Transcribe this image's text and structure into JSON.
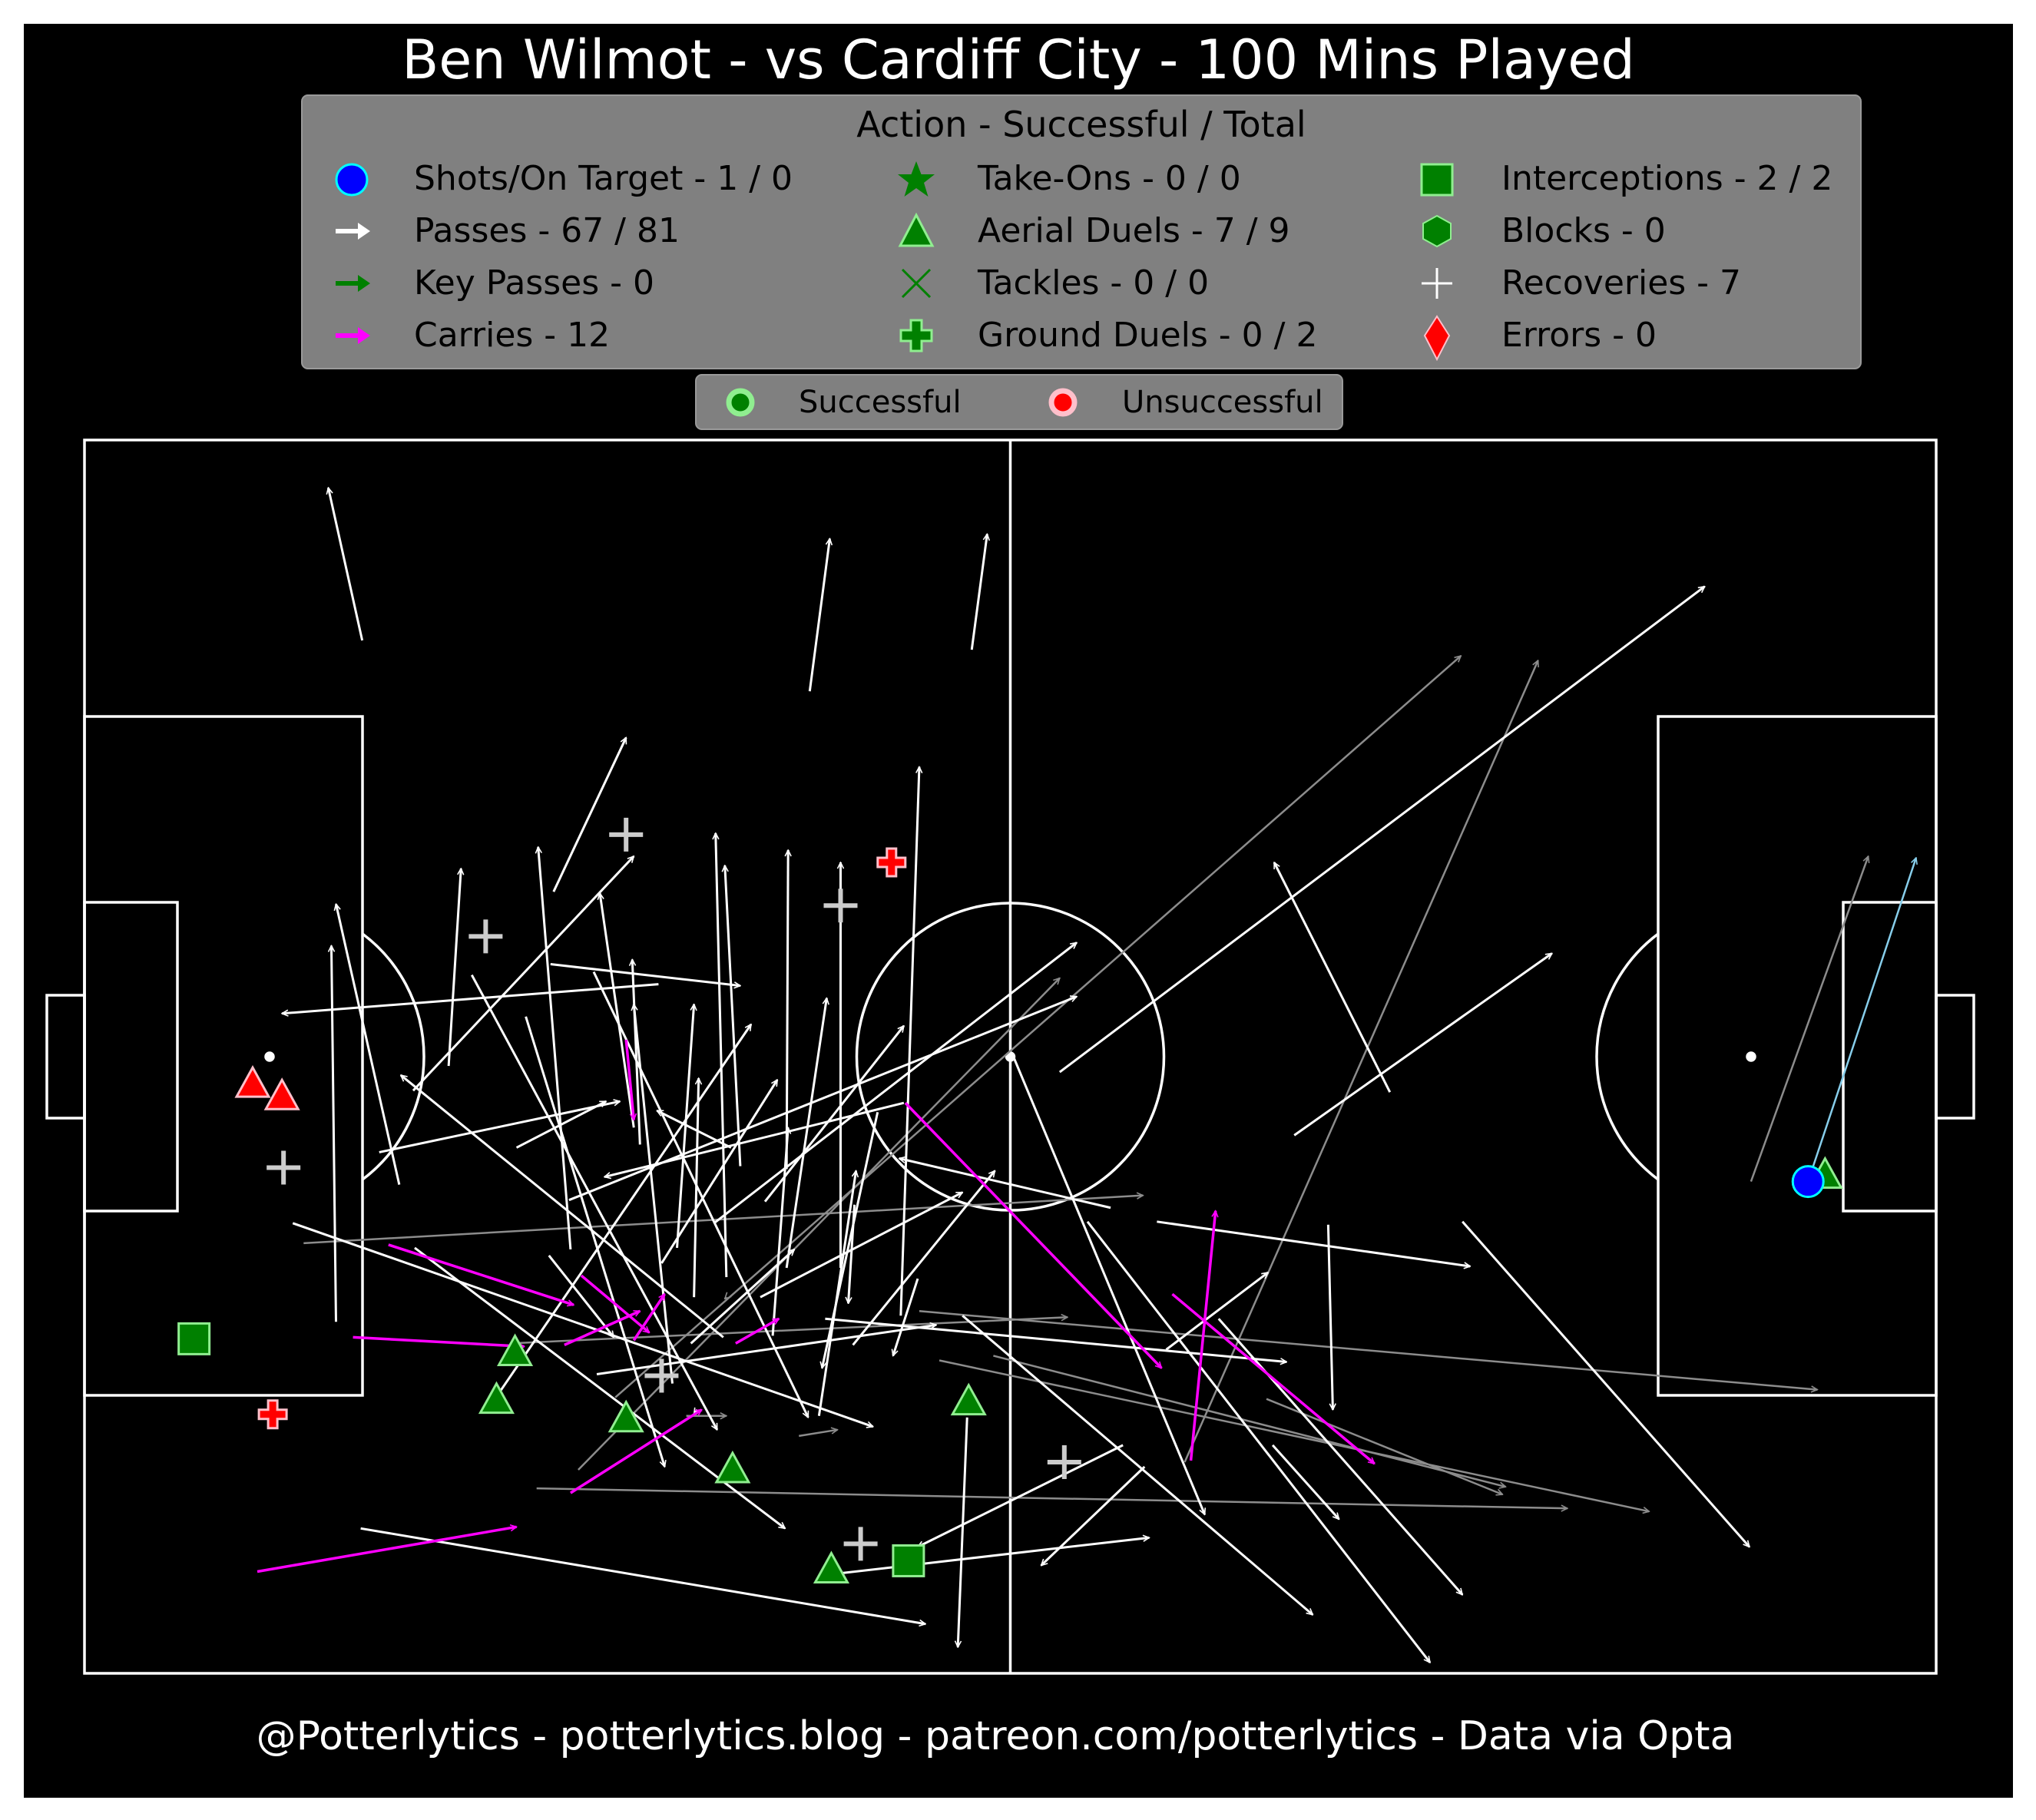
{
  "title": "Ben Wilmot - vs Cardiff City - 100 Mins Played",
  "footer": "@Potterlytics - potterlytics.blog - patreon.com/potterlytics - Data via Opta",
  "colors": {
    "background": "#000000",
    "frame": "#ffffff",
    "legend_bg": "#808080",
    "pass": "#ffffff",
    "pass_unsuccessful": "#8c8c8c",
    "key_pass": "#008000",
    "carry": "#ff00ff",
    "shot": "#0000ff",
    "shot_pass": "#87ceeb",
    "success_fill": "#008000",
    "success_edge": "#90ee90",
    "fail_fill": "#ff0000"
  },
  "legend": {
    "title": "Action - Successful / Total",
    "items": [
      {
        "icon": "shot-circle-icon",
        "label": "Shots/On Target - 1 / 0"
      },
      {
        "icon": "pass-arrow-icon",
        "label": "Passes - 67 / 81"
      },
      {
        "icon": "key-pass-arrow-icon",
        "label": "Key Passes - 0"
      },
      {
        "icon": "carry-arrow-icon",
        "label": "Carries - 12"
      },
      {
        "icon": "star-icon",
        "label": "Take-Ons - 0 / 0"
      },
      {
        "icon": "triangle-icon",
        "label": "Aerial Duels - 7 / 9"
      },
      {
        "icon": "x-icon",
        "label": "Tackles - 0 / 0"
      },
      {
        "icon": "bold-plus-icon",
        "label": "Ground Duels - 0 / 2"
      },
      {
        "icon": "square-icon",
        "label": "Interceptions - 2 / 2"
      },
      {
        "icon": "hexagon-icon",
        "label": "Blocks - 0"
      },
      {
        "icon": "plus-icon",
        "label": "Recoveries - 7"
      },
      {
        "icon": "diamond-icon",
        "label": "Errors - 0"
      }
    ]
  },
  "legend2": {
    "successful": "Successful",
    "unsuccessful": "Unsuccessful"
  },
  "chart_data": {
    "type": "scatter",
    "pitch": {
      "length": 120,
      "width": 80,
      "direction": "left-to-right"
    },
    "passes": [
      {
        "x": 18,
        "y": 13,
        "x2": 15.8,
        "y2": 3.1,
        "ok": true
      },
      {
        "x": 47,
        "y": 16.3,
        "x2": 48.3,
        "y2": 6.4,
        "ok": true
      },
      {
        "x": 57.5,
        "y": 13.6,
        "x2": 58.5,
        "y2": 6.1,
        "ok": true
      },
      {
        "x": 52.9,
        "y": 56.8,
        "x2": 54.1,
        "y2": 21.2,
        "ok": true
      },
      {
        "x": 30.4,
        "y": 29.3,
        "x2": 35.1,
        "y2": 19.3,
        "ok": true
      },
      {
        "x": 37.2,
        "y": 35.3,
        "x2": 12.8,
        "y2": 37.2,
        "ok": true
      },
      {
        "x": 16.3,
        "y": 57.2,
        "x2": 16.0,
        "y2": 32.8,
        "ok": true
      },
      {
        "x": 20.4,
        "y": 48.3,
        "x2": 16.3,
        "y2": 30.1,
        "ok": true
      },
      {
        "x": 35.6,
        "y": 44.6,
        "x2": 33.4,
        "y2": 29.4,
        "ok": true
      },
      {
        "x": 31.5,
        "y": 52.5,
        "x2": 29.4,
        "y2": 26.4,
        "ok": true
      },
      {
        "x": 41.6,
        "y": 54.3,
        "x2": 40.9,
        "y2": 25.5,
        "ok": true
      },
      {
        "x": 42.5,
        "y": 47.1,
        "x2": 41.5,
        "y2": 27.6,
        "ok": true
      },
      {
        "x": 45.5,
        "y": 47.3,
        "x2": 45.6,
        "y2": 26.6,
        "ok": true
      },
      {
        "x": 49.0,
        "y": 53.7,
        "x2": 49.0,
        "y2": 27.4,
        "ok": true
      },
      {
        "x": 45.5,
        "y": 53.7,
        "x2": 48.1,
        "y2": 36.2,
        "ok": true
      },
      {
        "x": 21.3,
        "y": 42.2,
        "x2": 35.6,
        "y2": 27.0,
        "ok": true
      },
      {
        "x": 30.2,
        "y": 34.0,
        "x2": 42.5,
        "y2": 35.4,
        "ok": true
      },
      {
        "x": 19.1,
        "y": 46.2,
        "x2": 34.7,
        "y2": 42.9,
        "ok": true
      },
      {
        "x": 41.9,
        "y": 45.9,
        "x2": 37.1,
        "y2": 43.5,
        "ok": true
      },
      {
        "x": 53.1,
        "y": 43.0,
        "x2": 33.7,
        "y2": 47.8,
        "ok": true
      },
      {
        "x": 31.4,
        "y": 49.3,
        "x2": 64.3,
        "y2": 36.1,
        "ok": true
      },
      {
        "x": 49.8,
        "y": 58.7,
        "x2": 59.0,
        "y2": 47.4,
        "ok": true
      },
      {
        "x": 36.0,
        "y": 45.7,
        "x2": 35.5,
        "y2": 33.7,
        "ok": true
      },
      {
        "x": 23.6,
        "y": 40.6,
        "x2": 24.4,
        "y2": 27.8,
        "ok": true
      },
      {
        "x": 38.4,
        "y": 52.4,
        "x2": 39.5,
        "y2": 36.6,
        "ok": true
      },
      {
        "x": 39.5,
        "y": 55.6,
        "x2": 39.8,
        "y2": 41.4,
        "ok": true
      },
      {
        "x": 44.6,
        "y": 58.1,
        "x2": 45.6,
        "y2": 44.6,
        "ok": true
      },
      {
        "x": 47.6,
        "y": 63.3,
        "x2": 50.0,
        "y2": 47.4,
        "ok": true
      },
      {
        "x": 38.1,
        "y": 61.2,
        "x2": 35.6,
        "y2": 36.6,
        "ok": true
      },
      {
        "x": 26.6,
        "y": 62.2,
        "x2": 43.2,
        "y2": 37.9,
        "ok": true
      },
      {
        "x": 41.4,
        "y": 58.2,
        "x2": 20.5,
        "y2": 41.2,
        "ok": true
      },
      {
        "x": 13.5,
        "y": 50.8,
        "x2": 51.1,
        "y2": 64.0,
        "ok": true
      },
      {
        "x": 17.9,
        "y": 70.6,
        "x2": 54.5,
        "y2": 76.8,
        "ok": true
      },
      {
        "x": 21.4,
        "y": 52.4,
        "x2": 45.4,
        "y2": 70.6,
        "ok": true
      },
      {
        "x": 25.1,
        "y": 34.7,
        "x2": 41.0,
        "y2": 64.2,
        "ok": true
      },
      {
        "x": 28.6,
        "y": 37.4,
        "x2": 37.6,
        "y2": 66.6,
        "ok": true
      },
      {
        "x": 33.0,
        "y": 34.5,
        "x2": 46.9,
        "y2": 63.4,
        "ok": true
      },
      {
        "x": 30.1,
        "y": 52.9,
        "x2": 34.3,
        "y2": 58.2,
        "ok": true
      },
      {
        "x": 48.2,
        "y": 73.6,
        "x2": 69.0,
        "y2": 71.2,
        "ok": true
      },
      {
        "x": 51.4,
        "y": 43.6,
        "x2": 47.8,
        "y2": 60.2,
        "ok": true
      },
      {
        "x": 39.7,
        "y": 62.9,
        "x2": 39.5,
        "y2": 63.2,
        "ok": true
      },
      {
        "x": 57.2,
        "y": 63.4,
        "x2": 56.6,
        "y2": 78.3,
        "ok": true
      },
      {
        "x": 56.9,
        "y": 56.8,
        "x2": 79.6,
        "y2": 76.2,
        "ok": true
      },
      {
        "x": 60.2,
        "y": 40.0,
        "x2": 72.6,
        "y2": 69.7,
        "ok": true
      },
      {
        "x": 65.0,
        "y": 50.7,
        "x2": 87.2,
        "y2": 79.3,
        "ok": true
      },
      {
        "x": 78.4,
        "y": 45.1,
        "x2": 95.1,
        "y2": 33.3,
        "ok": true
      },
      {
        "x": 84.6,
        "y": 42.3,
        "x2": 77.1,
        "y2": 27.4,
        "ok": true
      },
      {
        "x": 73.5,
        "y": 57.0,
        "x2": 89.3,
        "y2": 74.9,
        "ok": true
      },
      {
        "x": 80.6,
        "y": 50.9,
        "x2": 80.9,
        "y2": 62.9,
        "ok": true
      },
      {
        "x": 89.3,
        "y": 50.7,
        "x2": 107.9,
        "y2": 71.8,
        "ok": true
      },
      {
        "x": 69.5,
        "y": 50.7,
        "x2": 89.8,
        "y2": 53.6,
        "ok": true
      },
      {
        "x": 70.1,
        "y": 59.0,
        "x2": 76.7,
        "y2": 54.0,
        "ok": true
      },
      {
        "x": 33.2,
        "y": 60.6,
        "x2": 55.2,
        "y2": 57.4,
        "ok": true
      },
      {
        "x": 48.0,
        "y": 57.0,
        "x2": 77.9,
        "y2": 59.8,
        "ok": true
      },
      {
        "x": 77.0,
        "y": 65.2,
        "x2": 81.3,
        "y2": 70.0,
        "ok": true
      },
      {
        "x": 63.2,
        "y": 41.0,
        "x2": 105.0,
        "y2": 9.5,
        "ok": true
      },
      {
        "x": 67.3,
        "y": 65.2,
        "x2": 54.0,
        "y2": 71.8,
        "ok": true
      },
      {
        "x": 66.5,
        "y": 49.8,
        "x2": 52.8,
        "y2": 46.6,
        "ok": true
      },
      {
        "x": 68.7,
        "y": 66.6,
        "x2": 62.0,
        "y2": 73.0,
        "ok": true
      },
      {
        "x": 40.8,
        "y": 50.8,
        "x2": 64.3,
        "y2": 32.6,
        "ok": true
      },
      {
        "x": 43.8,
        "y": 55.6,
        "x2": 56.9,
        "y2": 48.8,
        "ok": true
      },
      {
        "x": 44.1,
        "y": 49.4,
        "x2": 53.1,
        "y2": 38.0,
        "ok": true
      },
      {
        "x": 39.3,
        "y": 58.6,
        "x2": 46.0,
        "y2": 52.5,
        "ok": true
      },
      {
        "x": 37.4,
        "y": 53.4,
        "x2": 44.9,
        "y2": 41.5,
        "ok": true
      },
      {
        "x": 49.9,
        "y": 49.6,
        "x2": 49.5,
        "y2": 56.0,
        "ok": true
      },
      {
        "x": 54.0,
        "y": 54.4,
        "x2": 52.4,
        "y2": 59.4,
        "ok": true
      },
      {
        "x": 28.0,
        "y": 45.9,
        "x2": 33.8,
        "y2": 42.9,
        "ok": true
      },
      {
        "x": 32.0,
        "y": 66.8,
        "x2": 63.2,
        "y2": 34.9,
        "ok": false
      },
      {
        "x": 34.4,
        "y": 62.1,
        "x2": 89.2,
        "y2": 14.0,
        "ok": false
      },
      {
        "x": 71.3,
        "y": 66.3,
        "x2": 94.2,
        "y2": 14.3,
        "ok": false
      },
      {
        "x": 14.2,
        "y": 52.1,
        "x2": 68.6,
        "y2": 49.0,
        "ok": false
      },
      {
        "x": 27.6,
        "y": 58.6,
        "x2": 63.7,
        "y2": 56.9,
        "ok": false
      },
      {
        "x": 54.1,
        "y": 56.5,
        "x2": 112.3,
        "y2": 61.6,
        "ok": false
      },
      {
        "x": 29.3,
        "y": 68.0,
        "x2": 96.1,
        "y2": 69.3,
        "ok": false
      },
      {
        "x": 41.6,
        "y": 55.6,
        "x2": 41.5,
        "y2": 55.7,
        "ok": false
      },
      {
        "x": 39.0,
        "y": 63.3,
        "x2": 41.6,
        "y2": 63.3,
        "ok": false
      },
      {
        "x": 46.3,
        "y": 64.6,
        "x2": 48.8,
        "y2": 64.2,
        "ok": false
      },
      {
        "x": 55.4,
        "y": 59.7,
        "x2": 101.4,
        "y2": 69.5,
        "ok": false
      },
      {
        "x": 58.9,
        "y": 59.4,
        "x2": 92.1,
        "y2": 67.9,
        "ok": false
      },
      {
        "x": 76.6,
        "y": 62.2,
        "x2": 91.9,
        "y2": 68.4,
        "ok": false
      },
      {
        "x": 108.0,
        "y": 48.1,
        "x2": 115.6,
        "y2": 27.0,
        "ok": false
      }
    ],
    "carries": [
      {
        "x": 11.2,
        "y": 73.4,
        "x2": 28.0,
        "y2": 70.5
      },
      {
        "x": 17.4,
        "y": 58.2,
        "x2": 28.5,
        "y2": 58.8
      },
      {
        "x": 19.7,
        "y": 52.2,
        "x2": 31.7,
        "y2": 56.1
      },
      {
        "x": 31.1,
        "y": 58.7,
        "x2": 36.0,
        "y2": 56.5
      },
      {
        "x": 31.5,
        "y": 68.3,
        "x2": 40.0,
        "y2": 62.9
      },
      {
        "x": 35.1,
        "y": 38.9,
        "x2": 35.6,
        "y2": 44.1
      },
      {
        "x": 32.2,
        "y": 54.2,
        "x2": 36.6,
        "y2": 57.9
      },
      {
        "x": 35.6,
        "y": 58.4,
        "x2": 37.6,
        "y2": 55.4
      },
      {
        "x": 42.2,
        "y": 58.6,
        "x2": 45.0,
        "y2": 57.0
      },
      {
        "x": 53.2,
        "y": 43.0,
        "x2": 69.8,
        "y2": 60.2
      },
      {
        "x": 70.5,
        "y": 55.4,
        "x2": 83.6,
        "y2": 66.4
      },
      {
        "x": 71.7,
        "y": 66.2,
        "x2": 73.3,
        "y2": 50.0
      }
    ],
    "shot": {
      "x": 111.7,
      "y": 48.1,
      "x2": 118.7,
      "y2": 27.1
    },
    "aerial_duels": [
      {
        "x": 10.9,
        "y": 41.8,
        "ok": false
      },
      {
        "x": 12.8,
        "y": 42.6,
        "ok": false
      },
      {
        "x": 27.9,
        "y": 59.2,
        "ok": true
      },
      {
        "x": 26.7,
        "y": 62.3,
        "ok": true
      },
      {
        "x": 35.1,
        "y": 63.5,
        "ok": true
      },
      {
        "x": 42.0,
        "y": 66.8,
        "ok": true
      },
      {
        "x": 57.3,
        "y": 62.4,
        "ok": true
      },
      {
        "x": 48.4,
        "y": 73.3,
        "ok": true
      },
      {
        "x": 112.8,
        "y": 47.7,
        "ok": true
      }
    ],
    "ground_duels": [
      {
        "x": 12.2,
        "y": 63.2,
        "ok": false
      },
      {
        "x": 52.3,
        "y": 27.4,
        "ok": false
      }
    ],
    "interceptions": [
      {
        "x": 7.1,
        "y": 58.3,
        "ok": true
      },
      {
        "x": 53.4,
        "y": 72.7,
        "ok": true
      }
    ],
    "recoveries": [
      {
        "x": 12.9,
        "y": 47.2
      },
      {
        "x": 26.0,
        "y": 32.2
      },
      {
        "x": 35.1,
        "y": 25.6
      },
      {
        "x": 49.0,
        "y": 30.2
      },
      {
        "x": 37.4,
        "y": 60.7
      },
      {
        "x": 50.3,
        "y": 71.6
      },
      {
        "x": 63.5,
        "y": 66.3
      }
    ]
  }
}
